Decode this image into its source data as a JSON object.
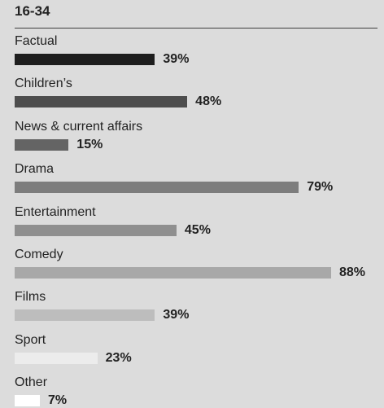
{
  "chart_data": {
    "type": "bar",
    "orientation": "horizontal",
    "title": "16-34",
    "categories": [
      "Factual",
      "Children’s",
      "News & current affairs",
      "Drama",
      "Entertainment",
      "Comedy",
      "Films",
      "Sport",
      "Other"
    ],
    "values": [
      39,
      48,
      15,
      79,
      45,
      88,
      39,
      23,
      7
    ],
    "value_labels": [
      "39%",
      "48%",
      "15%",
      "79%",
      "45%",
      "88%",
      "39%",
      "23%",
      "7%"
    ],
    "bar_colors": [
      "#1e1e1e",
      "#4d4d4d",
      "#646464",
      "#7d7d7d",
      "#8f8f8f",
      "#a8a8a8",
      "#bdbdbd",
      "#ececec",
      "#ffffff"
    ],
    "unit": "%",
    "xlim": [
      0,
      88
    ],
    "grid": false,
    "legend": "none"
  }
}
